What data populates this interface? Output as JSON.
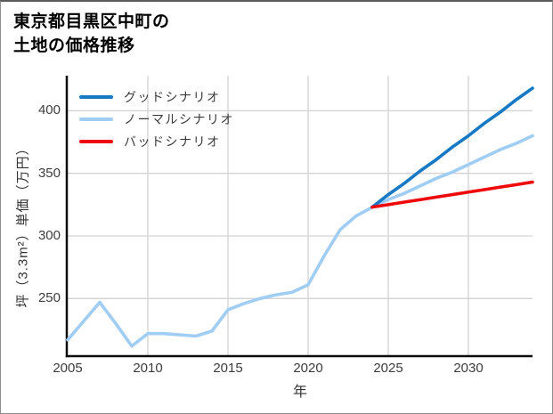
{
  "title": {
    "line1": "東京都目黒区中町の",
    "line2": "土地の価格推移"
  },
  "legend": {
    "items": [
      {
        "key": "good",
        "label": "グッドシナリオ",
        "color": "#1779c4"
      },
      {
        "key": "normal",
        "label": "ノーマルシナリオ",
        "color": "#a0cdf4"
      },
      {
        "key": "bad",
        "label": "バッドシナリオ",
        "color": "#ee0808"
      }
    ]
  },
  "chart_data": {
    "type": "line",
    "title": "東京都目黒区中町の土地の価格推移",
    "xlabel": "年",
    "ylabel": "坪（3.3m²）単価（万円）",
    "x_ticks": [
      2005,
      2010,
      2015,
      2020,
      2025,
      2030
    ],
    "y_ticks": [
      250,
      300,
      350,
      400
    ],
    "xlim": [
      2005,
      2034
    ],
    "ylim": [
      204,
      428
    ],
    "grid": true,
    "legend_position": "top-left-inside",
    "series": [
      {
        "key": "good",
        "name": "グッドシナリオ",
        "color": "#1779c4",
        "x": [
          2024,
          2025,
          2026,
          2027,
          2028,
          2029,
          2030,
          2031,
          2032,
          2033,
          2034
        ],
        "values": [
          323,
          333,
          342,
          352,
          361,
          371,
          380,
          390,
          399,
          409,
          418
        ]
      },
      {
        "key": "normal",
        "name": "ノーマルシナリオ",
        "color": "#a0cdf4",
        "x": [
          2005,
          2006,
          2007,
          2008,
          2009,
          2010,
          2011,
          2012,
          2013,
          2014,
          2015,
          2016,
          2017,
          2018,
          2019,
          2020,
          2021,
          2022,
          2023,
          2024,
          2025,
          2026,
          2027,
          2028,
          2029,
          2030,
          2031,
          2032,
          2033,
          2034
        ],
        "values": [
          217,
          232,
          247,
          230,
          212,
          222,
          222,
          221,
          220,
          224,
          241,
          246,
          250,
          253,
          255,
          261,
          284,
          305,
          316,
          323,
          329,
          334,
          340,
          346,
          351,
          357,
          363,
          369,
          374,
          380
        ]
      },
      {
        "key": "bad",
        "name": "バッドシナリオ",
        "color": "#ee0808",
        "x": [
          2024,
          2025,
          2026,
          2027,
          2028,
          2029,
          2030,
          2031,
          2032,
          2033,
          2034
        ],
        "values": [
          323,
          325,
          327,
          329,
          331,
          333,
          335,
          337,
          339,
          341,
          343
        ]
      }
    ],
    "colors": {
      "grid": "#d3d3d3",
      "axis": "#0d0d0d",
      "tick_text": "#3d3d3d",
      "title_text": "#000000"
    }
  }
}
